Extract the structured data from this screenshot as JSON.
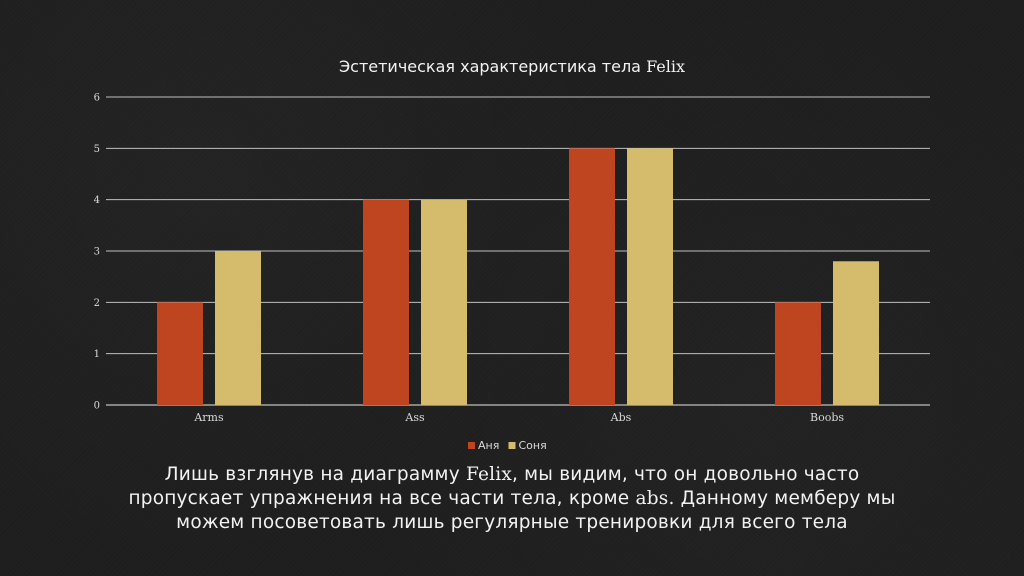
{
  "chart_data": {
    "type": "bar",
    "title_parts": [
      "Эстетическая характеристика тела ",
      "Felix"
    ],
    "categories": [
      "Arms",
      "Ass",
      "Abs",
      "Boobs"
    ],
    "series": [
      {
        "name": "Аня",
        "values": [
          2,
          4,
          5,
          2
        ],
        "color": "#be4520"
      },
      {
        "name": "Соня",
        "values": [
          3,
          4,
          5,
          2.8
        ],
        "color": "#d4bc6c"
      }
    ],
    "yticks": [
      "0",
      "1",
      "2",
      "3",
      "4",
      "5",
      "6"
    ],
    "ylim": [
      0,
      6
    ],
    "grid": true,
    "legend_position": "bottom"
  },
  "caption": {
    "line1_part1": "Лишь взглянув на диаграмму ",
    "line1_serif": "Felix",
    "line1_part2": ", мы видим, что он довольно часто",
    "line2_part1": "пропускает упражнения на все части тела, кроме ",
    "line2_serif": "abs.",
    "line2_part2": " Данному мемберу мы",
    "line3": "можем посоветовать лишь регулярные тренировки для всего тела"
  },
  "colors": {
    "background": "#1e1e1e",
    "gridline": "#bfbfbf",
    "text": "#f2f2f2"
  }
}
